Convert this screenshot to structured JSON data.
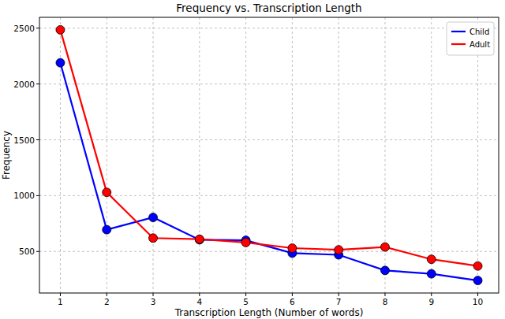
{
  "chart_data": {
    "type": "line",
    "title": "Frequency vs. Transcription Length",
    "x_label": "Transcription Length (Number of words)",
    "y_label": "Frequency",
    "x": [
      1,
      2,
      3,
      4,
      5,
      6,
      7,
      8,
      9,
      10
    ],
    "series": [
      {
        "name": "Child",
        "color": "#0000ff",
        "marker": "circle",
        "values": [
          2190,
          695,
          805,
          605,
          600,
          485,
          470,
          330,
          300,
          240
        ]
      },
      {
        "name": "Adult",
        "color": "#ff0000",
        "marker": "circle",
        "values": [
          2485,
          1030,
          620,
          610,
          580,
          530,
          515,
          540,
          430,
          370
        ]
      }
    ],
    "xlim": [
      0.55,
      10.45
    ],
    "xticks": [
      1,
      2,
      3,
      4,
      5,
      6,
      7,
      8,
      9,
      10
    ],
    "ylim": [
      128,
      2597
    ],
    "yticks": [
      500,
      1000,
      1500,
      2000,
      2500
    ],
    "grid": true,
    "legend": "upper right"
  }
}
